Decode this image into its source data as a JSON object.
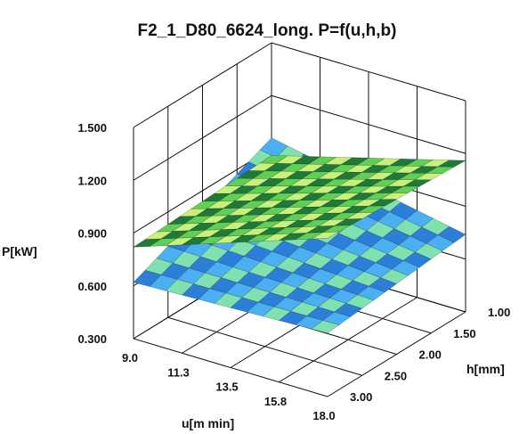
{
  "chart_data": {
    "type": "surface3d",
    "title": "F2_1_D80_6624_long. P=f(u,h,b)",
    "xlabel": "u[m min]",
    "ylabel": "h[mm]",
    "zlabel": "P[kW]",
    "x_ticks": [
      "9.0",
      "11.3",
      "13.5",
      "15.8",
      "18.0"
    ],
    "y_ticks": [
      "1.00",
      "1.50",
      "2.00",
      "2.50",
      "3.00"
    ],
    "z_ticks": [
      "0.300",
      "0.600",
      "0.900",
      "1.200",
      "1.500"
    ],
    "xlim": [
      9.0,
      18.0
    ],
    "ylim": [
      1.0,
      3.0
    ],
    "zlim": [
      0.3,
      1.5
    ],
    "grid": true,
    "surfaces": [
      {
        "colors": [
          "#2b7fd9",
          "#4ab0f2",
          "#7fe0b0"
        ],
        "corners": [
          {
            "x": 9.0,
            "y": 1.0,
            "z": 0.62
          },
          {
            "x": 18.0,
            "y": 1.0,
            "z": 0.66
          },
          {
            "x": 18.0,
            "y": 3.0,
            "z": 0.74
          },
          {
            "x": 9.0,
            "y": 3.0,
            "z": 0.96
          }
        ]
      },
      {
        "colors": [
          "#1f7a3a",
          "#5fcf55",
          "#c8f07a"
        ],
        "corners": [
          {
            "x": 9.0,
            "y": 1.0,
            "z": 0.82
          },
          {
            "x": 18.0,
            "y": 1.0,
            "z": 1.2
          },
          {
            "x": 18.0,
            "y": 3.0,
            "z": 1.16
          },
          {
            "x": 9.0,
            "y": 3.0,
            "z": 0.86
          }
        ]
      }
    ]
  }
}
